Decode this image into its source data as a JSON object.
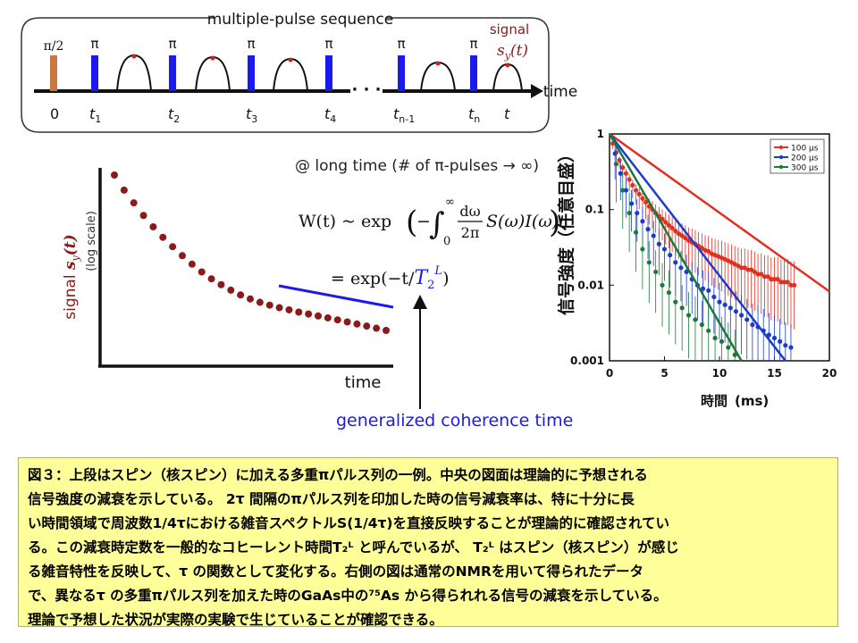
{
  "sequence": {
    "title": "multiple-pulse sequence",
    "first_pulse_label": "π/2",
    "pi_label": "π",
    "signal_label": "signal",
    "signal_symbol": "s",
    "signal_sub": "y",
    "signal_arg": "(t)",
    "time_label": "time",
    "dots": "· · ·",
    "ticks": [
      {
        "main": "0",
        "sub": ""
      },
      {
        "main": "t",
        "sub": "1"
      },
      {
        "main": "t",
        "sub": "2"
      },
      {
        "main": "t",
        "sub": "3"
      },
      {
        "main": "t",
        "sub": "4"
      },
      {
        "main": "t",
        "sub": "n-1"
      },
      {
        "main": "t",
        "sub": "n"
      },
      {
        "main": "t",
        "sub": ""
      }
    ],
    "colors": {
      "first_pulse": "#c87840",
      "pi_pulse": "#1a1aee",
      "echo_peak": "#cc2222",
      "signal_label": "#8b1a1a"
    }
  },
  "decay_plot": {
    "ylabel_prefix": "signal ",
    "ylabel_symbol": "s",
    "ylabel_sub": "y",
    "ylabel_arg": "(t)",
    "ylabel_scale": "(log scale)",
    "xlabel": "time",
    "dot_color": "#8b1a1a",
    "line_color": "#1a1aee",
    "dot_values": [
      1.0,
      0.88,
      0.79,
      0.71,
      0.645,
      0.59,
      0.545,
      0.505,
      0.47,
      0.44,
      0.415,
      0.395,
      0.377,
      0.362,
      0.35,
      0.34,
      0.332,
      0.325,
      0.319,
      0.313,
      0.308,
      0.303,
      0.298,
      0.293,
      0.288,
      0.283,
      0.278,
      0.273,
      0.268
    ]
  },
  "formula": {
    "lead": "@ long time (# of π-pulses → ∞)",
    "w_lhs": "W(t) ~ exp",
    "integral_upper": "∞",
    "integral_lower": "0",
    "frac_num": "dω",
    "frac_den": "2π",
    "integrand": "S(ω)I(ω)t",
    "result_prefix": "= exp(−t/",
    "t2": "T",
    "t2_sub": "2",
    "t2_sup": "L",
    "result_suffix": ")"
  },
  "annotation": {
    "text": "generalized coherence time",
    "color": "#1a1aee"
  },
  "chart_data": {
    "type": "scatter",
    "ylabel": "信号強度（任意目盛）",
    "xlabel": "時間",
    "xunit": "(ms)",
    "xlim": [
      0,
      20
    ],
    "ylim": [
      0.001,
      1
    ],
    "yscale": "log",
    "xticks": [
      "0",
      "5",
      "10",
      "15",
      "20"
    ],
    "yticks": [
      "1",
      "0.1",
      "0.01",
      "0.001"
    ],
    "legend_position": "top-right",
    "series": [
      {
        "name": "100 μs",
        "color": "#e03020",
        "x": [
          0.3,
          0.6,
          0.9,
          1.2,
          1.5,
          1.8,
          2.1,
          2.4,
          2.7,
          3.0,
          3.3,
          3.6,
          3.9,
          4.2,
          4.5,
          4.8,
          5.1,
          5.4,
          5.7,
          6.0,
          6.3,
          6.6,
          6.9,
          7.2,
          7.5,
          7.8,
          8.1,
          8.4,
          8.7,
          9.0,
          9.3,
          9.6,
          9.9,
          10.2,
          10.5,
          10.8,
          11.1,
          11.4,
          11.7,
          12.0,
          12.3,
          12.6,
          12.9,
          13.2,
          13.5,
          13.8,
          14.1,
          14.4,
          14.7,
          15.0,
          15.3,
          15.6,
          15.9,
          16.2,
          16.5,
          16.8
        ],
        "y": [
          0.75,
          0.57,
          0.45,
          0.36,
          0.3,
          0.25,
          0.21,
          0.18,
          0.16,
          0.14,
          0.125,
          0.11,
          0.1,
          0.09,
          0.082,
          0.075,
          0.068,
          0.062,
          0.057,
          0.052,
          0.048,
          0.045,
          0.042,
          0.039,
          0.037,
          0.035,
          0.033,
          0.031,
          0.029,
          0.028,
          0.026,
          0.025,
          0.024,
          0.023,
          0.022,
          0.021,
          0.02,
          0.019,
          0.018,
          0.017,
          0.017,
          0.016,
          0.016,
          0.015,
          0.014,
          0.014,
          0.013,
          0.013,
          0.012,
          0.012,
          0.012,
          0.011,
          0.011,
          0.011,
          0.01,
          0.01
        ],
        "fit_x": [
          0,
          21
        ],
        "fit_y": [
          1.0,
          0.0065
        ]
      },
      {
        "name": "200 μs",
        "color": "#1a3ad0",
        "x": [
          0.5,
          1.0,
          1.5,
          2.0,
          2.5,
          3.0,
          3.5,
          4.0,
          4.5,
          5.0,
          5.5,
          6.0,
          6.5,
          7.0,
          7.5,
          8.0,
          8.5,
          9.0,
          9.5,
          10.0,
          10.5,
          11.0,
          11.5,
          12.0,
          12.5,
          13.0,
          13.5,
          14.0,
          14.5,
          15.0,
          15.5,
          16.0,
          16.5
        ],
        "y": [
          0.55,
          0.3,
          0.18,
          0.12,
          0.09,
          0.07,
          0.055,
          0.045,
          0.035,
          0.03,
          0.025,
          0.02,
          0.017,
          0.015,
          0.012,
          0.01,
          0.009,
          0.0085,
          0.007,
          0.006,
          0.0055,
          0.005,
          0.0045,
          0.004,
          0.0035,
          0.003,
          0.0028,
          0.0025,
          0.0022,
          0.002,
          0.0018,
          0.0016,
          0.0015
        ],
        "fit_x": [
          0,
          16
        ],
        "fit_y": [
          1.0,
          0.001
        ]
      },
      {
        "name": "300 μs",
        "color": "#1a7a3a",
        "x": [
          0.6,
          1.2,
          1.8,
          2.4,
          3.0,
          3.6,
          4.2,
          4.8,
          5.4,
          6.0,
          6.6,
          7.2,
          7.8,
          8.4,
          9.0,
          9.6,
          10.2,
          10.8,
          11.4
        ],
        "y": [
          0.4,
          0.18,
          0.09,
          0.05,
          0.03,
          0.02,
          0.015,
          0.01,
          0.008,
          0.006,
          0.005,
          0.004,
          0.0035,
          0.003,
          0.0025,
          0.002,
          0.0018,
          0.0015,
          0.0012
        ],
        "fit_x": [
          0,
          12
        ],
        "fit_y": [
          1.0,
          0.001
        ]
      }
    ]
  },
  "caption": {
    "lines": [
      "図３：上段はスピン（核スピン）に加える多重πパルス列の一例。中央の図面は理論的に予想される",
      "信号強度の減衰を示している。 2τ 間隔のπパルス列を印加した時の信号減衰率は、特に十分に長",
      "い時間領域で周波数1/4τにおける雑音スペクトルS(1/4τ)を直接反映することが理論的に確認されてい",
      "る。この減衰時定数を一般的なコヒーレント時間T₂ᴸ と呼んでいるが、 T₂ᴸ はスピン（核スピン）が感じ",
      "る雑音特性を反映して、τ の関数として変化する。右側の図は通常のNMRを用いて得られたデータ",
      "で、異なるτ の多重πパルス列を加えた時のGaAs中の⁷⁵As から得られれる信号の減衰を示している。",
      "理論で予想した状況が実際の実験で生じていることが確認できる。"
    ]
  }
}
